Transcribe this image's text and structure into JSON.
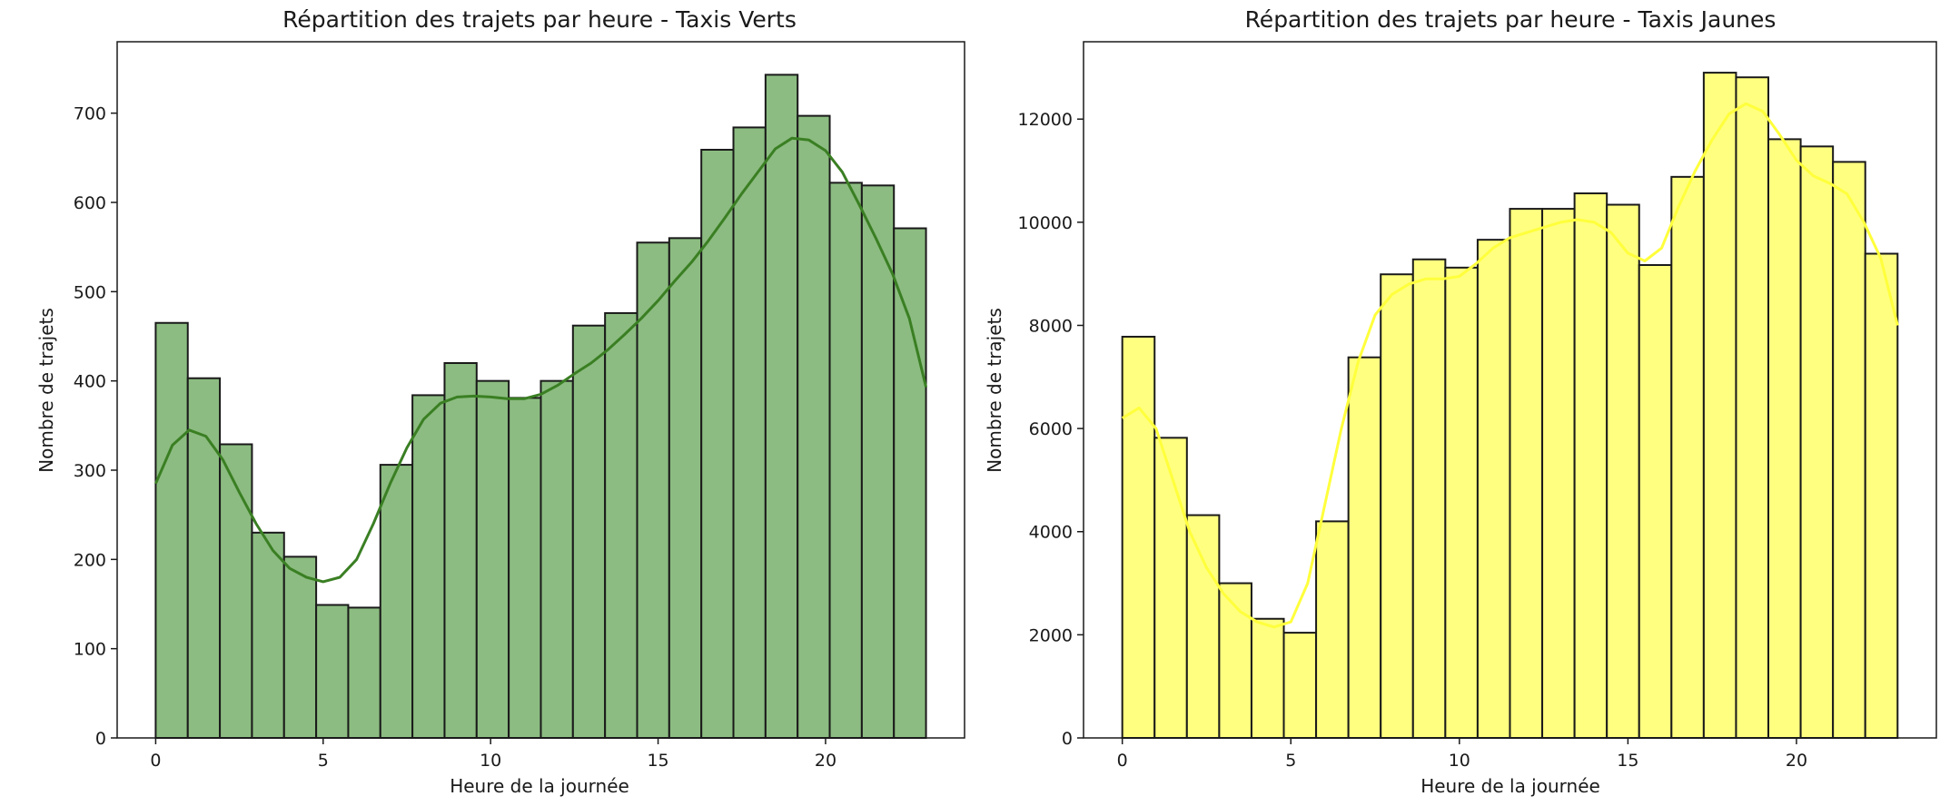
{
  "chart_data": [
    {
      "type": "bar",
      "title": "Répartition des trajets par heure - Taxis Verts",
      "xlabel": "Heure de la journée",
      "ylabel": "Nombre de trajets",
      "xlim": [
        -1.15,
        24.15
      ],
      "ylim": [
        0,
        780
      ],
      "xticks": [
        0,
        5,
        10,
        15,
        20
      ],
      "yticks": [
        0,
        100,
        200,
        300,
        400,
        500,
        600,
        700
      ],
      "bin_start": 0,
      "bin_width": 0.9583,
      "values": [
        465,
        403,
        329,
        230,
        203,
        149,
        146,
        306,
        384,
        420,
        400,
        381,
        400,
        462,
        476,
        555,
        560,
        659,
        684,
        743,
        697,
        622,
        619,
        571
      ],
      "kde": {
        "x": [
          0,
          0.5,
          1,
          1.5,
          2,
          2.5,
          3,
          3.5,
          4,
          4.5,
          5,
          5.5,
          6,
          6.5,
          7,
          7.5,
          8,
          8.5,
          9,
          9.5,
          10,
          10.5,
          11,
          11.5,
          12,
          12.5,
          13,
          13.5,
          14,
          14.5,
          15,
          15.5,
          16,
          16.5,
          17,
          17.5,
          18,
          18.5,
          19,
          19.5,
          20,
          20.5,
          21,
          21.5,
          22,
          22.5,
          23
        ],
        "y": [
          285,
          328,
          345,
          338,
          312,
          275,
          240,
          210,
          190,
          180,
          175,
          180,
          200,
          240,
          285,
          325,
          357,
          375,
          382,
          383,
          382,
          380,
          380,
          385,
          395,
          408,
          420,
          435,
          452,
          470,
          490,
          512,
          533,
          557,
          583,
          610,
          635,
          660,
          672,
          670,
          658,
          634,
          598,
          560,
          520,
          470,
          393
        ]
      },
      "colors": {
        "bar": "#8cbc81",
        "kde": "#3a7f23",
        "edge": "#1a1a1a"
      }
    },
    {
      "type": "bar",
      "title": "Répartition des trajets par heure - Taxis Jaunes",
      "xlabel": "Heure de la journée",
      "ylabel": "Nombre de trajets",
      "xlim": [
        -1.15,
        24.15
      ],
      "ylim": [
        0,
        13500
      ],
      "xticks": [
        0,
        5,
        10,
        15,
        20
      ],
      "yticks": [
        0,
        2000,
        4000,
        6000,
        8000,
        10000,
        12000
      ],
      "bin_start": 0,
      "bin_width": 0.9583,
      "values": [
        7780,
        5820,
        4320,
        3000,
        2310,
        2040,
        4200,
        7380,
        8990,
        9280,
        9120,
        9660,
        10260,
        10260,
        10560,
        10340,
        9170,
        10880,
        12900,
        12810,
        11610,
        11470,
        11170,
        9390
      ],
      "kde": {
        "x": [
          0,
          0.5,
          1,
          1.5,
          2,
          2.5,
          3,
          3.5,
          4,
          4.5,
          5,
          5.5,
          6,
          6.5,
          7,
          7.5,
          8,
          8.5,
          9,
          9.5,
          10,
          10.5,
          11,
          11.5,
          12,
          12.5,
          13,
          13.5,
          14,
          14.5,
          15,
          15.5,
          16,
          16.5,
          17,
          17.5,
          18,
          18.5,
          19,
          19.5,
          20,
          20.5,
          21,
          21.5,
          22,
          22.5,
          23
        ],
        "y": [
          6200,
          6400,
          6000,
          5000,
          4000,
          3300,
          2800,
          2450,
          2250,
          2150,
          2250,
          3000,
          4500,
          6000,
          7300,
          8200,
          8600,
          8800,
          8900,
          8900,
          8950,
          9200,
          9500,
          9700,
          9800,
          9900,
          10000,
          10050,
          10000,
          9800,
          9400,
          9250,
          9500,
          10300,
          11000,
          11600,
          12100,
          12300,
          12150,
          11700,
          11200,
          10900,
          10750,
          10550,
          10000,
          9300,
          8000
        ]
      },
      "colors": {
        "bar": "#ffff80",
        "kde": "#ffff3c",
        "edge": "#1a1a1a"
      }
    }
  ]
}
